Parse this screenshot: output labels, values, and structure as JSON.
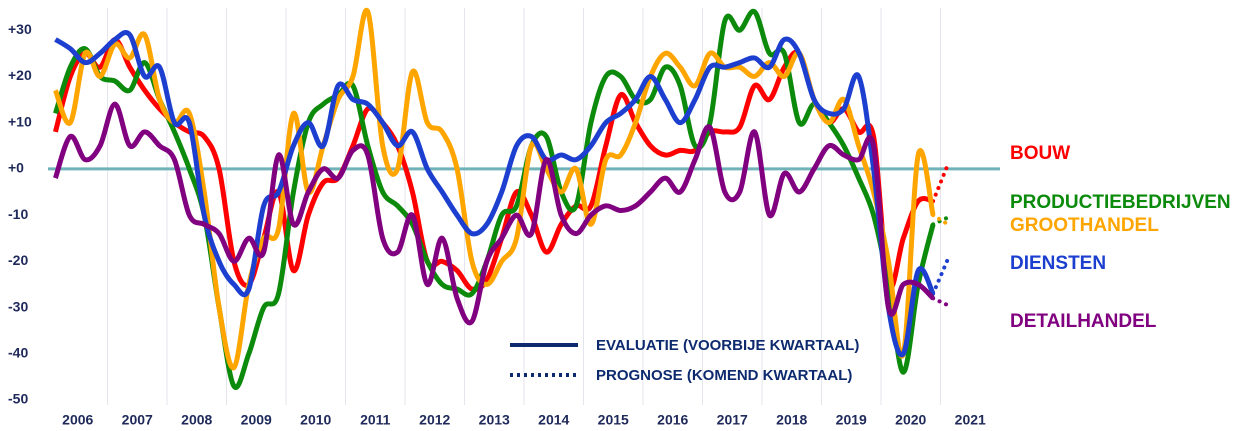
{
  "chart_data": {
    "type": "line",
    "categories": [
      "2006",
      "2007",
      "2008",
      "2009",
      "2010",
      "2011",
      "2012",
      "2013",
      "2014",
      "2015",
      "2016",
      "2017",
      "2018",
      "2019",
      "2020",
      "2021"
    ],
    "x": [
      2006.125,
      2006.375,
      2006.625,
      2006.875,
      2007.125,
      2007.375,
      2007.625,
      2007.875,
      2008.125,
      2008.375,
      2008.625,
      2008.875,
      2009.125,
      2009.375,
      2009.625,
      2009.875,
      2010.125,
      2010.375,
      2010.625,
      2010.875,
      2011.125,
      2011.375,
      2011.625,
      2011.875,
      2012.125,
      2012.375,
      2012.625,
      2012.875,
      2013.125,
      2013.375,
      2013.625,
      2013.875,
      2014.125,
      2014.375,
      2014.625,
      2014.875,
      2015.125,
      2015.375,
      2015.625,
      2015.875,
      2016.125,
      2016.375,
      2016.625,
      2016.875,
      2017.125,
      2017.375,
      2017.625,
      2017.875,
      2018.125,
      2018.375,
      2018.625,
      2018.875,
      2019.125,
      2019.375,
      2019.625,
      2019.875,
      2020.125,
      2020.375,
      2020.625,
      2020.875
    ],
    "forecast_x": 2021.125,
    "xlim": [
      2006,
      2022
    ],
    "ylim": [
      -50,
      32
    ],
    "yticks": [
      {
        "value": 30,
        "label": "+30"
      },
      {
        "value": 20,
        "label": "+20"
      },
      {
        "value": 10,
        "label": "+10"
      },
      {
        "value": 0,
        "label": "+0"
      },
      -10,
      -20,
      -30,
      -40,
      -50
    ],
    "series": [
      {
        "name": "BOUW",
        "color": "#ff0000",
        "values": [
          8,
          20,
          25,
          22,
          28,
          22,
          17,
          13,
          10,
          8,
          7,
          0,
          -20,
          -25,
          -15,
          -5,
          -22,
          -10,
          -3,
          -2,
          5,
          13,
          10,
          5,
          -5,
          -20,
          -20,
          -22,
          -26,
          -24,
          -15,
          -5,
          -10,
          -18,
          -12,
          -8,
          -8,
          5,
          16,
          10,
          5,
          3,
          4,
          4,
          8,
          8,
          9,
          18,
          15,
          22,
          25,
          15,
          10,
          13,
          8,
          7,
          -25,
          -15,
          -7,
          -7
        ],
        "forecast": 1
      },
      {
        "name": "PRODUCTIEBEDRIJVEN",
        "color": "#0b8a0b",
        "values": [
          12,
          22,
          26,
          20,
          19,
          17,
          23,
          15,
          8,
          0,
          -10,
          -30,
          -47,
          -40,
          -30,
          -27,
          -5,
          10,
          14,
          16,
          18,
          5,
          -5,
          -8,
          -12,
          -20,
          -25,
          -26,
          -27,
          -20,
          -10,
          -8,
          5,
          7,
          -5,
          -8,
          10,
          20,
          20,
          15,
          15,
          22,
          18,
          5,
          10,
          32,
          30,
          34,
          25,
          25,
          10,
          14,
          10,
          5,
          -2,
          -10,
          -25,
          -44,
          -25,
          -12
        ],
        "forecast": -10.5
      },
      {
        "name": "GROOTHANDEL",
        "color": "#ffa500",
        "values": [
          17,
          10,
          25,
          20,
          27,
          24,
          29,
          15,
          10,
          12,
          -5,
          -30,
          -43,
          -25,
          -15,
          -13,
          12,
          -5,
          5,
          15,
          20,
          34,
          5,
          0,
          21,
          10,
          8,
          0,
          -20,
          -25,
          -20,
          -15,
          5,
          0,
          -5,
          0,
          -12,
          2,
          3,
          10,
          20,
          25,
          22,
          18,
          25,
          22,
          22,
          20,
          23,
          20,
          25,
          15,
          10,
          15,
          5,
          -5,
          -20,
          -40,
          3,
          -10
        ],
        "forecast": -12
      },
      {
        "name": "DIENSTEN",
        "color": "#1c3fd0",
        "values": [
          28,
          26,
          23,
          25,
          28,
          29,
          20,
          22,
          10,
          10,
          -10,
          -20,
          -25,
          -26,
          -8,
          -5,
          5,
          10,
          5,
          18,
          15,
          14,
          10,
          5,
          8,
          0,
          -5,
          -10,
          -14,
          -12,
          -5,
          5,
          7,
          2,
          3,
          2,
          5,
          10,
          12,
          15,
          20,
          15,
          10,
          15,
          22,
          22,
          23,
          24,
          22,
          28,
          25,
          15,
          12,
          13,
          20,
          0,
          -30,
          -40,
          -22,
          -27
        ],
        "forecast": -19.5
      },
      {
        "name": "DETAILHANDEL",
        "color": "#800080",
        "values": [
          -2,
          7,
          2,
          5,
          14,
          5,
          8,
          5,
          2,
          -10,
          -12,
          -14,
          -20,
          -15,
          -18,
          3,
          -12,
          -5,
          0,
          -2,
          4,
          3,
          -15,
          -18,
          -10,
          -25,
          -15,
          -28,
          -33,
          -20,
          -15,
          -10,
          -14,
          2,
          -10,
          -14,
          -10,
          -8,
          -9,
          -8,
          -5,
          -2,
          -5,
          2,
          9,
          -5,
          -5,
          8,
          -10,
          -1,
          -5,
          0,
          5,
          3,
          2,
          5,
          -30,
          -25,
          -25,
          -28
        ],
        "forecast": -29.5
      }
    ],
    "legend": {
      "solid": "EVALUATIE (VOORBIJE KWARTAAL)",
      "dotted": "PROGNOSE (KOMEND KWARTAAL)"
    },
    "zero_line": true
  }
}
